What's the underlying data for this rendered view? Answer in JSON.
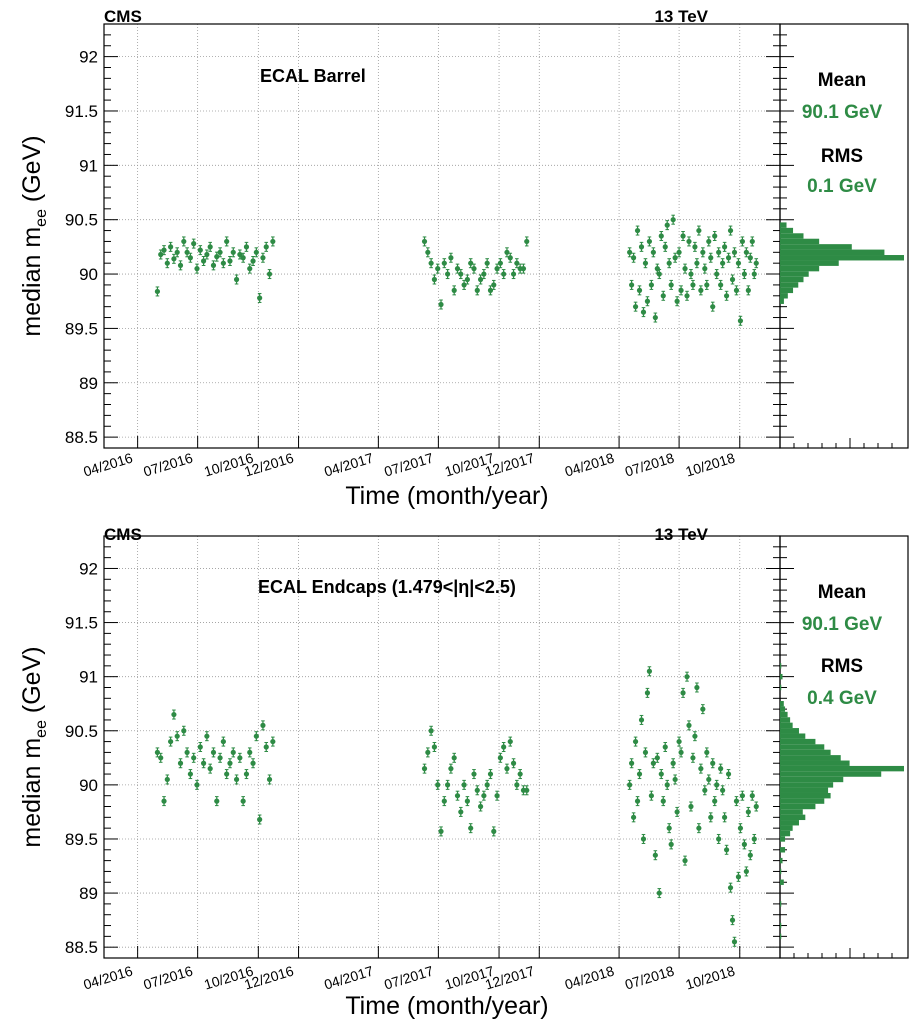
{
  "chart_data": [
    {
      "type": "scatter",
      "experiment_label": "CMS",
      "energy_label": "13 TeV",
      "annotation": "ECAL Barrel",
      "ylabel_main": "median m",
      "ylabel_sub": "ee",
      "ylabel_unit": " (GeV)",
      "xlabel": "Time (month/year)",
      "ylim": [
        88.4,
        92.3
      ],
      "yticks": [
        "88.5",
        "89",
        "89.5",
        "90",
        "90.5",
        "91",
        "91.5",
        "92"
      ],
      "x_tick_labels": [
        "04/2016",
        "07/2016",
        "10/2016",
        "12/2016",
        "04/2017",
        "07/2017",
        "10/2017",
        "12/2017",
        "04/2018",
        "07/2018",
        "10/2018"
      ],
      "grid": true,
      "color": "#2e8b45",
      "series": [
        {
          "x": [
            "2016-05-01",
            "2016-05-06",
            "2016-05-11",
            "2016-05-16",
            "2016-05-21",
            "2016-05-26",
            "2016-05-31",
            "2016-06-05",
            "2016-06-10",
            "2016-06-15",
            "2016-06-20",
            "2016-06-25",
            "2016-06-30",
            "2016-07-05",
            "2016-07-10",
            "2016-07-15",
            "2016-07-20",
            "2016-07-25",
            "2016-07-30",
            "2016-08-04",
            "2016-08-09",
            "2016-08-14",
            "2016-08-19",
            "2016-08-24",
            "2016-08-29",
            "2016-09-03",
            "2016-09-08",
            "2016-09-13",
            "2016-09-18",
            "2016-09-23",
            "2016-09-28",
            "2016-10-03",
            "2016-10-08",
            "2016-10-13",
            "2016-10-18",
            "2016-10-23"
          ],
          "values": [
            89.84,
            90.18,
            90.22,
            90.1,
            90.25,
            90.14,
            90.2,
            90.08,
            90.3,
            90.2,
            90.15,
            90.28,
            90.05,
            90.22,
            90.12,
            90.18,
            90.25,
            90.08,
            90.16,
            90.2,
            90.1,
            90.3,
            90.12,
            90.2,
            89.95,
            90.18,
            90.15,
            90.25,
            90.05,
            90.12,
            90.2,
            89.78,
            90.15,
            90.25,
            90.0,
            90.3
          ]
        },
        {
          "x": [
            "2017-06-10",
            "2017-06-15",
            "2017-06-20",
            "2017-06-25",
            "2017-06-30",
            "2017-07-05",
            "2017-07-10",
            "2017-07-15",
            "2017-07-20",
            "2017-07-25",
            "2017-07-30",
            "2017-08-04",
            "2017-08-09",
            "2017-08-14",
            "2017-08-19",
            "2017-08-24",
            "2017-08-29",
            "2017-09-03",
            "2017-09-08",
            "2017-09-13",
            "2017-09-18",
            "2017-09-23",
            "2017-09-28",
            "2017-10-03",
            "2017-10-08",
            "2017-10-13",
            "2017-10-18",
            "2017-10-23",
            "2017-10-28",
            "2017-11-02",
            "2017-11-07",
            "2017-11-12"
          ],
          "values": [
            90.3,
            90.2,
            90.1,
            89.95,
            90.05,
            89.72,
            90.1,
            90.0,
            90.15,
            89.85,
            90.05,
            90.0,
            89.9,
            89.95,
            90.1,
            90.05,
            89.85,
            89.95,
            90.0,
            90.1,
            89.85,
            89.9,
            90.05,
            90.1,
            90.0,
            90.2,
            90.15,
            90.0,
            90.1,
            90.05,
            90.05,
            90.3
          ]
        },
        {
          "x": [
            "2018-04-17",
            "2018-04-20",
            "2018-04-23",
            "2018-04-26",
            "2018-04-29",
            "2018-05-02",
            "2018-05-05",
            "2018-05-08",
            "2018-05-11",
            "2018-05-14",
            "2018-05-17",
            "2018-05-20",
            "2018-05-23",
            "2018-05-26",
            "2018-05-29",
            "2018-06-01",
            "2018-06-04",
            "2018-06-07",
            "2018-06-10",
            "2018-06-13",
            "2018-06-16",
            "2018-06-19",
            "2018-06-22",
            "2018-06-25",
            "2018-06-28",
            "2018-07-01",
            "2018-07-04",
            "2018-07-07",
            "2018-07-10",
            "2018-07-13",
            "2018-07-16",
            "2018-07-19",
            "2018-07-22",
            "2018-07-25",
            "2018-07-28",
            "2018-07-31",
            "2018-08-03",
            "2018-08-06",
            "2018-08-09",
            "2018-08-12",
            "2018-08-15",
            "2018-08-18",
            "2018-08-21",
            "2018-08-24",
            "2018-08-27",
            "2018-08-30",
            "2018-09-02",
            "2018-09-05",
            "2018-09-08",
            "2018-09-11",
            "2018-09-14",
            "2018-09-17",
            "2018-09-20",
            "2018-09-23",
            "2018-09-26",
            "2018-09-29",
            "2018-10-02",
            "2018-10-05",
            "2018-10-08",
            "2018-10-11",
            "2018-10-14",
            "2018-10-17",
            "2018-10-20",
            "2018-10-23",
            "2018-10-26"
          ],
          "values": [
            90.2,
            89.9,
            90.15,
            89.7,
            90.4,
            89.85,
            90.25,
            89.65,
            90.1,
            89.75,
            90.3,
            89.9,
            90.2,
            89.6,
            90.05,
            90.0,
            90.35,
            89.8,
            90.25,
            90.45,
            90.1,
            89.9,
            90.5,
            90.15,
            89.75,
            90.2,
            89.85,
            90.35,
            90.05,
            89.8,
            90.3,
            90.0,
            89.9,
            90.25,
            90.1,
            90.4,
            89.85,
            90.2,
            90.05,
            89.9,
            90.3,
            90.15,
            89.7,
            90.35,
            90.0,
            90.2,
            89.9,
            90.1,
            90.25,
            89.8,
            90.15,
            90.4,
            89.95,
            90.2,
            89.85,
            90.1,
            89.57,
            90.3,
            90.0,
            90.2,
            89.85,
            90.15,
            90.3,
            90.0,
            90.1
          ]
        }
      ],
      "histogram": {
        "bins_center": [
          89.75,
          89.8,
          89.85,
          89.9,
          89.95,
          90.0,
          90.05,
          90.1,
          90.15,
          90.2,
          90.25,
          90.3,
          90.35,
          90.4,
          90.45
        ],
        "counts": [
          3,
          6,
          10,
          14,
          18,
          22,
          30,
          45,
          95,
          80,
          55,
          30,
          18,
          10,
          5
        ]
      },
      "stats": {
        "mean_label": "Mean",
        "mean_value": "90.1 GeV",
        "rms_label": "RMS",
        "rms_value": "0.1 GeV"
      }
    },
    {
      "type": "scatter",
      "experiment_label": "CMS",
      "energy_label": "13 TeV",
      "annotation": "ECAL Endcaps (1.479<|η|<2.5)",
      "ylabel_main": "median m",
      "ylabel_sub": "ee",
      "ylabel_unit": " (GeV)",
      "xlabel": "Time (month/year)",
      "ylim": [
        88.4,
        92.3
      ],
      "yticks": [
        "88.5",
        "89",
        "89.5",
        "90",
        "90.5",
        "91",
        "91.5",
        "92"
      ],
      "x_tick_labels": [
        "04/2016",
        "07/2016",
        "10/2016",
        "12/2016",
        "04/2017",
        "07/2017",
        "10/2017",
        "12/2017",
        "04/2018",
        "07/2018",
        "10/2018"
      ],
      "grid": true,
      "color": "#2e8b45",
      "series": [
        {
          "x": [
            "2016-05-01",
            "2016-05-06",
            "2016-05-11",
            "2016-05-16",
            "2016-05-21",
            "2016-05-26",
            "2016-05-31",
            "2016-06-05",
            "2016-06-10",
            "2016-06-15",
            "2016-06-20",
            "2016-06-25",
            "2016-06-30",
            "2016-07-05",
            "2016-07-10",
            "2016-07-15",
            "2016-07-20",
            "2016-07-25",
            "2016-07-30",
            "2016-08-04",
            "2016-08-09",
            "2016-08-14",
            "2016-08-19",
            "2016-08-24",
            "2016-08-29",
            "2016-09-03",
            "2016-09-08",
            "2016-09-13",
            "2016-09-18",
            "2016-09-23",
            "2016-09-28",
            "2016-10-03",
            "2016-10-08",
            "2016-10-13",
            "2016-10-18",
            "2016-10-23"
          ],
          "values": [
            90.3,
            90.25,
            89.85,
            90.05,
            90.4,
            90.65,
            90.45,
            90.2,
            90.5,
            90.3,
            90.1,
            90.25,
            90.0,
            90.35,
            90.2,
            90.45,
            90.15,
            90.3,
            89.85,
            90.25,
            90.4,
            90.1,
            90.2,
            90.3,
            90.05,
            90.25,
            89.85,
            90.1,
            90.3,
            90.2,
            90.45,
            89.68,
            90.55,
            90.35,
            90.05,
            90.4
          ]
        },
        {
          "x": [
            "2017-06-10",
            "2017-06-15",
            "2017-06-20",
            "2017-06-25",
            "2017-06-30",
            "2017-07-05",
            "2017-07-10",
            "2017-07-15",
            "2017-07-20",
            "2017-07-25",
            "2017-07-30",
            "2017-08-04",
            "2017-08-09",
            "2017-08-14",
            "2017-08-19",
            "2017-08-24",
            "2017-08-29",
            "2017-09-03",
            "2017-09-08",
            "2017-09-13",
            "2017-09-18",
            "2017-09-23",
            "2017-09-28",
            "2017-10-03",
            "2017-10-08",
            "2017-10-13",
            "2017-10-18",
            "2017-10-23",
            "2017-10-28",
            "2017-11-02",
            "2017-11-07",
            "2017-11-12"
          ],
          "values": [
            90.15,
            90.3,
            90.5,
            90.35,
            90.0,
            89.57,
            89.85,
            90.0,
            90.15,
            90.25,
            89.9,
            89.75,
            90.0,
            89.85,
            89.6,
            90.1,
            89.95,
            89.8,
            89.9,
            90.0,
            90.1,
            89.57,
            89.9,
            90.25,
            90.35,
            90.15,
            90.4,
            90.2,
            90.0,
            90.1,
            89.95,
            89.95
          ]
        },
        {
          "x": [
            "2018-04-17",
            "2018-04-20",
            "2018-04-23",
            "2018-04-26",
            "2018-04-29",
            "2018-05-02",
            "2018-05-05",
            "2018-05-08",
            "2018-05-11",
            "2018-05-14",
            "2018-05-17",
            "2018-05-20",
            "2018-05-23",
            "2018-05-26",
            "2018-05-29",
            "2018-06-01",
            "2018-06-04",
            "2018-06-07",
            "2018-06-10",
            "2018-06-13",
            "2018-06-16",
            "2018-06-19",
            "2018-06-22",
            "2018-06-25",
            "2018-06-28",
            "2018-07-01",
            "2018-07-04",
            "2018-07-07",
            "2018-07-10",
            "2018-07-13",
            "2018-07-16",
            "2018-07-19",
            "2018-07-22",
            "2018-07-25",
            "2018-07-28",
            "2018-07-31",
            "2018-08-03",
            "2018-08-06",
            "2018-08-09",
            "2018-08-12",
            "2018-08-15",
            "2018-08-18",
            "2018-08-21",
            "2018-08-24",
            "2018-08-27",
            "2018-08-30",
            "2018-09-02",
            "2018-09-05",
            "2018-09-08",
            "2018-09-11",
            "2018-09-14",
            "2018-09-17",
            "2018-09-20",
            "2018-09-23",
            "2018-09-26",
            "2018-09-29",
            "2018-10-02",
            "2018-10-05",
            "2018-10-08",
            "2018-10-11",
            "2018-10-14",
            "2018-10-17",
            "2018-10-20",
            "2018-10-23",
            "2018-10-26"
          ],
          "values": [
            90.0,
            90.2,
            89.7,
            90.4,
            89.85,
            90.1,
            90.6,
            89.5,
            90.3,
            90.85,
            91.05,
            89.9,
            90.2,
            89.35,
            90.25,
            89.0,
            90.1,
            89.85,
            90.35,
            90.0,
            89.6,
            89.45,
            90.2,
            90.05,
            89.75,
            90.4,
            90.3,
            90.85,
            89.3,
            91.0,
            90.55,
            89.8,
            90.25,
            90.45,
            90.9,
            89.6,
            90.15,
            90.7,
            89.95,
            90.3,
            90.05,
            89.7,
            90.2,
            89.85,
            90.0,
            89.5,
            90.15,
            89.95,
            89.7,
            89.4,
            90.1,
            89.05,
            88.75,
            88.55,
            89.85,
            89.15,
            89.6,
            89.9,
            89.45,
            89.2,
            89.75,
            89.35,
            89.9,
            89.5,
            89.8
          ]
        }
      ],
      "histogram": {
        "bins_center": [
          88.6,
          88.7,
          88.9,
          89.1,
          89.2,
          89.3,
          89.4,
          89.5,
          89.55,
          89.6,
          89.65,
          89.7,
          89.75,
          89.8,
          89.85,
          89.9,
          89.95,
          90.0,
          90.05,
          90.1,
          90.15,
          90.2,
          90.25,
          90.3,
          90.35,
          90.4,
          90.45,
          90.5,
          90.55,
          90.6,
          90.65,
          90.7,
          90.75,
          90.9,
          91.0,
          91.1
        ],
        "counts": [
          1,
          1,
          1,
          3,
          1,
          2,
          4,
          4,
          8,
          10,
          15,
          20,
          18,
          28,
          35,
          40,
          38,
          42,
          50,
          80,
          98,
          55,
          48,
          40,
          35,
          28,
          20,
          15,
          10,
          8,
          6,
          4,
          3,
          1,
          2,
          1
        ]
      },
      "stats": {
        "mean_label": "Mean",
        "mean_value": "90.1 GeV",
        "rms_label": "RMS",
        "rms_value": "0.4 GeV"
      }
    }
  ]
}
